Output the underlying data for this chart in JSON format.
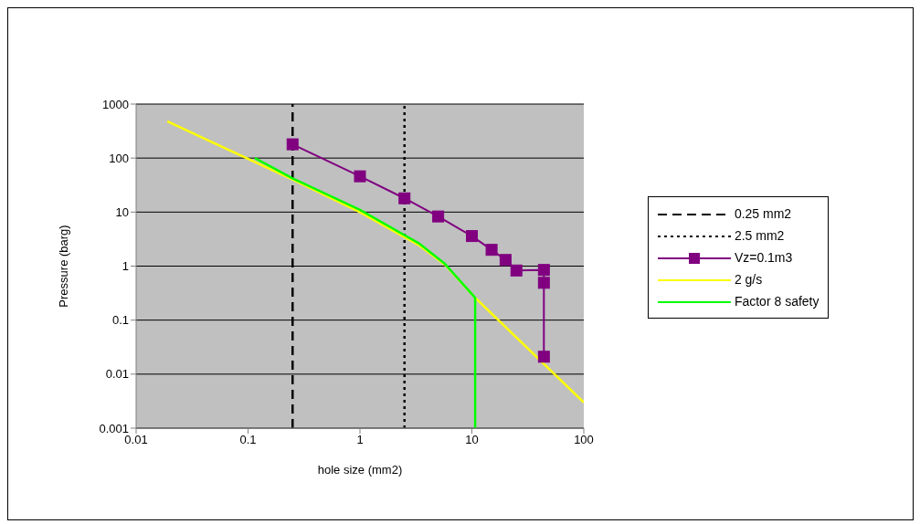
{
  "chart_data": {
    "type": "line",
    "xlabel": "hole size (mm2)",
    "ylabel": "Pressure (barg)",
    "log": "xy",
    "xlim": [
      0.01,
      100
    ],
    "xticks": [
      0.01,
      0.1,
      1,
      10,
      100
    ],
    "ylim": [
      0.001,
      1000
    ],
    "yticks": [
      0.001,
      0.01,
      0.1,
      1,
      10,
      100,
      1000
    ],
    "grid": "y",
    "legend": "right",
    "series": [
      {
        "name": "0.25 mm2",
        "color": "#000000",
        "line_style": "dashed",
        "marker": "none",
        "x": [
          0.25,
          0.25
        ],
        "values": [
          0.001,
          1000
        ]
      },
      {
        "name": "2.5 mm2",
        "color": "#000000",
        "line_style": "dotted",
        "marker": "none",
        "x": [
          2.5,
          2.5
        ],
        "values": [
          0.001,
          1000
        ]
      },
      {
        "name": "Vz=0.1m3",
        "color": "#800080",
        "line_style": "solid",
        "marker": "square",
        "x": [
          0.25,
          1,
          2.5,
          5,
          10,
          15,
          20,
          25,
          44,
          44,
          44
        ],
        "values": [
          180,
          46,
          18,
          8.3,
          3.6,
          2.0,
          1.3,
          0.83,
          0.85,
          0.49,
          0.021
        ]
      },
      {
        "name": "2 g/s",
        "color": "#ffff00",
        "line_style": "solid",
        "marker": "none",
        "x": [
          0.019,
          0.25,
          1,
          3.4,
          5.75,
          10.7,
          100
        ],
        "values": [
          480,
          40,
          10,
          2.4,
          1.06,
          0.26,
          0.003
        ]
      },
      {
        "name": "Factor 8 safety",
        "color": "#00ff00",
        "line_style": "solid",
        "marker": "none",
        "x": [
          0.115,
          0.25,
          1,
          3.4,
          5.75,
          10.7,
          10.7
        ],
        "values": [
          100,
          42,
          11,
          2.6,
          1.1,
          0.26,
          0.001
        ]
      }
    ]
  }
}
